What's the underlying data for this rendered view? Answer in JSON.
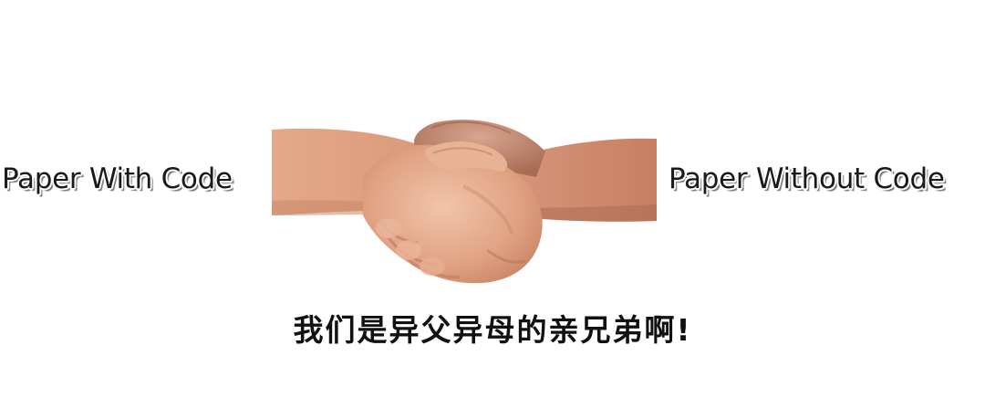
{
  "meme": {
    "left_label": "Paper With Code",
    "right_label": "Paper Without Code",
    "caption": "我们是异父异母的亲兄弟啊!",
    "image": {
      "icon": "handshake-icon",
      "colors": {
        "skin_light": "#e8b394",
        "skin_mid": "#d99778",
        "skin_dark": "#b8735a",
        "skin_shadow": "#8f5642",
        "text": "#1a1a1a"
      }
    }
  }
}
